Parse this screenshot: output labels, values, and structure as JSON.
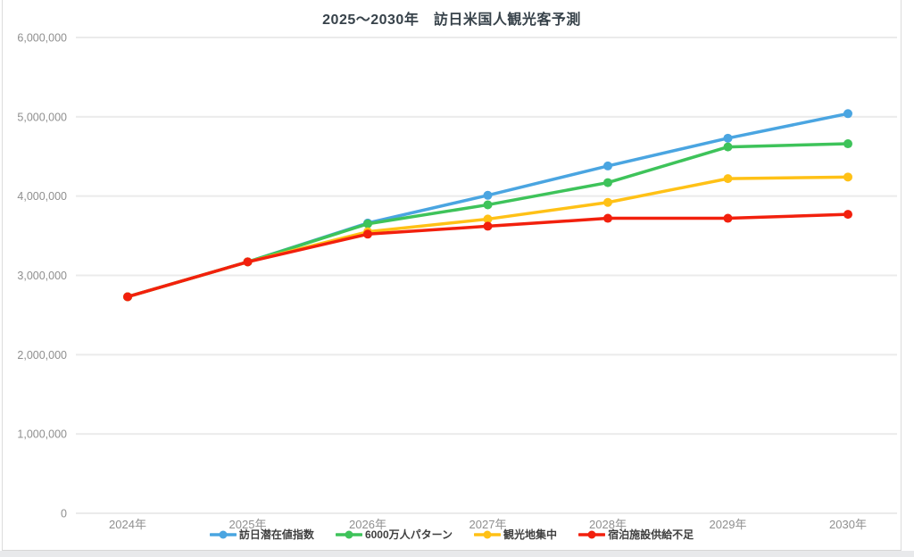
{
  "page": {
    "title": "2025〜2030年　訪日米国人観光客予測"
  },
  "colors": {
    "gridline": "#ebebeb",
    "tick_text": "#8f8f8f",
    "title_text": "#37424a",
    "card_border": "#dcdcdc",
    "page_strip": "#e8e9eb"
  },
  "chart_data": {
    "type": "line",
    "title": "2025〜2030年　訪日米国人観光客予測",
    "categories": [
      "2024年",
      "2025年",
      "2026年",
      "2027年",
      "2028年",
      "2029年",
      "2030年"
    ],
    "xlabel": "",
    "ylabel": "",
    "ylim": [
      0,
      6000000
    ],
    "y_ticks": [
      "6,000,000",
      "5,000,000",
      "4,000,000",
      "3,000,000",
      "2,000,000",
      "1,000,000",
      "0"
    ],
    "y_tick_values": [
      6000000,
      5000000,
      4000000,
      3000000,
      2000000,
      1000000,
      0
    ],
    "grid": true,
    "legend_position": "bottom",
    "series": [
      {
        "name": "訪日潜在値指数",
        "color": "#4AA5E1",
        "values": [
          2730000,
          3170000,
          3660000,
          4010000,
          4380000,
          4730000,
          5040000
        ]
      },
      {
        "name": "6000万人パターン",
        "color": "#3EC35A",
        "values": [
          2730000,
          3170000,
          3650000,
          3890000,
          4170000,
          4620000,
          4660000
        ]
      },
      {
        "name": "観光地集中",
        "color": "#FFC116",
        "values": [
          2730000,
          3170000,
          3550000,
          3710000,
          3920000,
          4220000,
          4240000
        ]
      },
      {
        "name": "宿泊施設供給不足",
        "color": "#F2200D",
        "values": [
          2730000,
          3170000,
          3520000,
          3620000,
          3720000,
          3720000,
          3770000
        ]
      }
    ]
  }
}
